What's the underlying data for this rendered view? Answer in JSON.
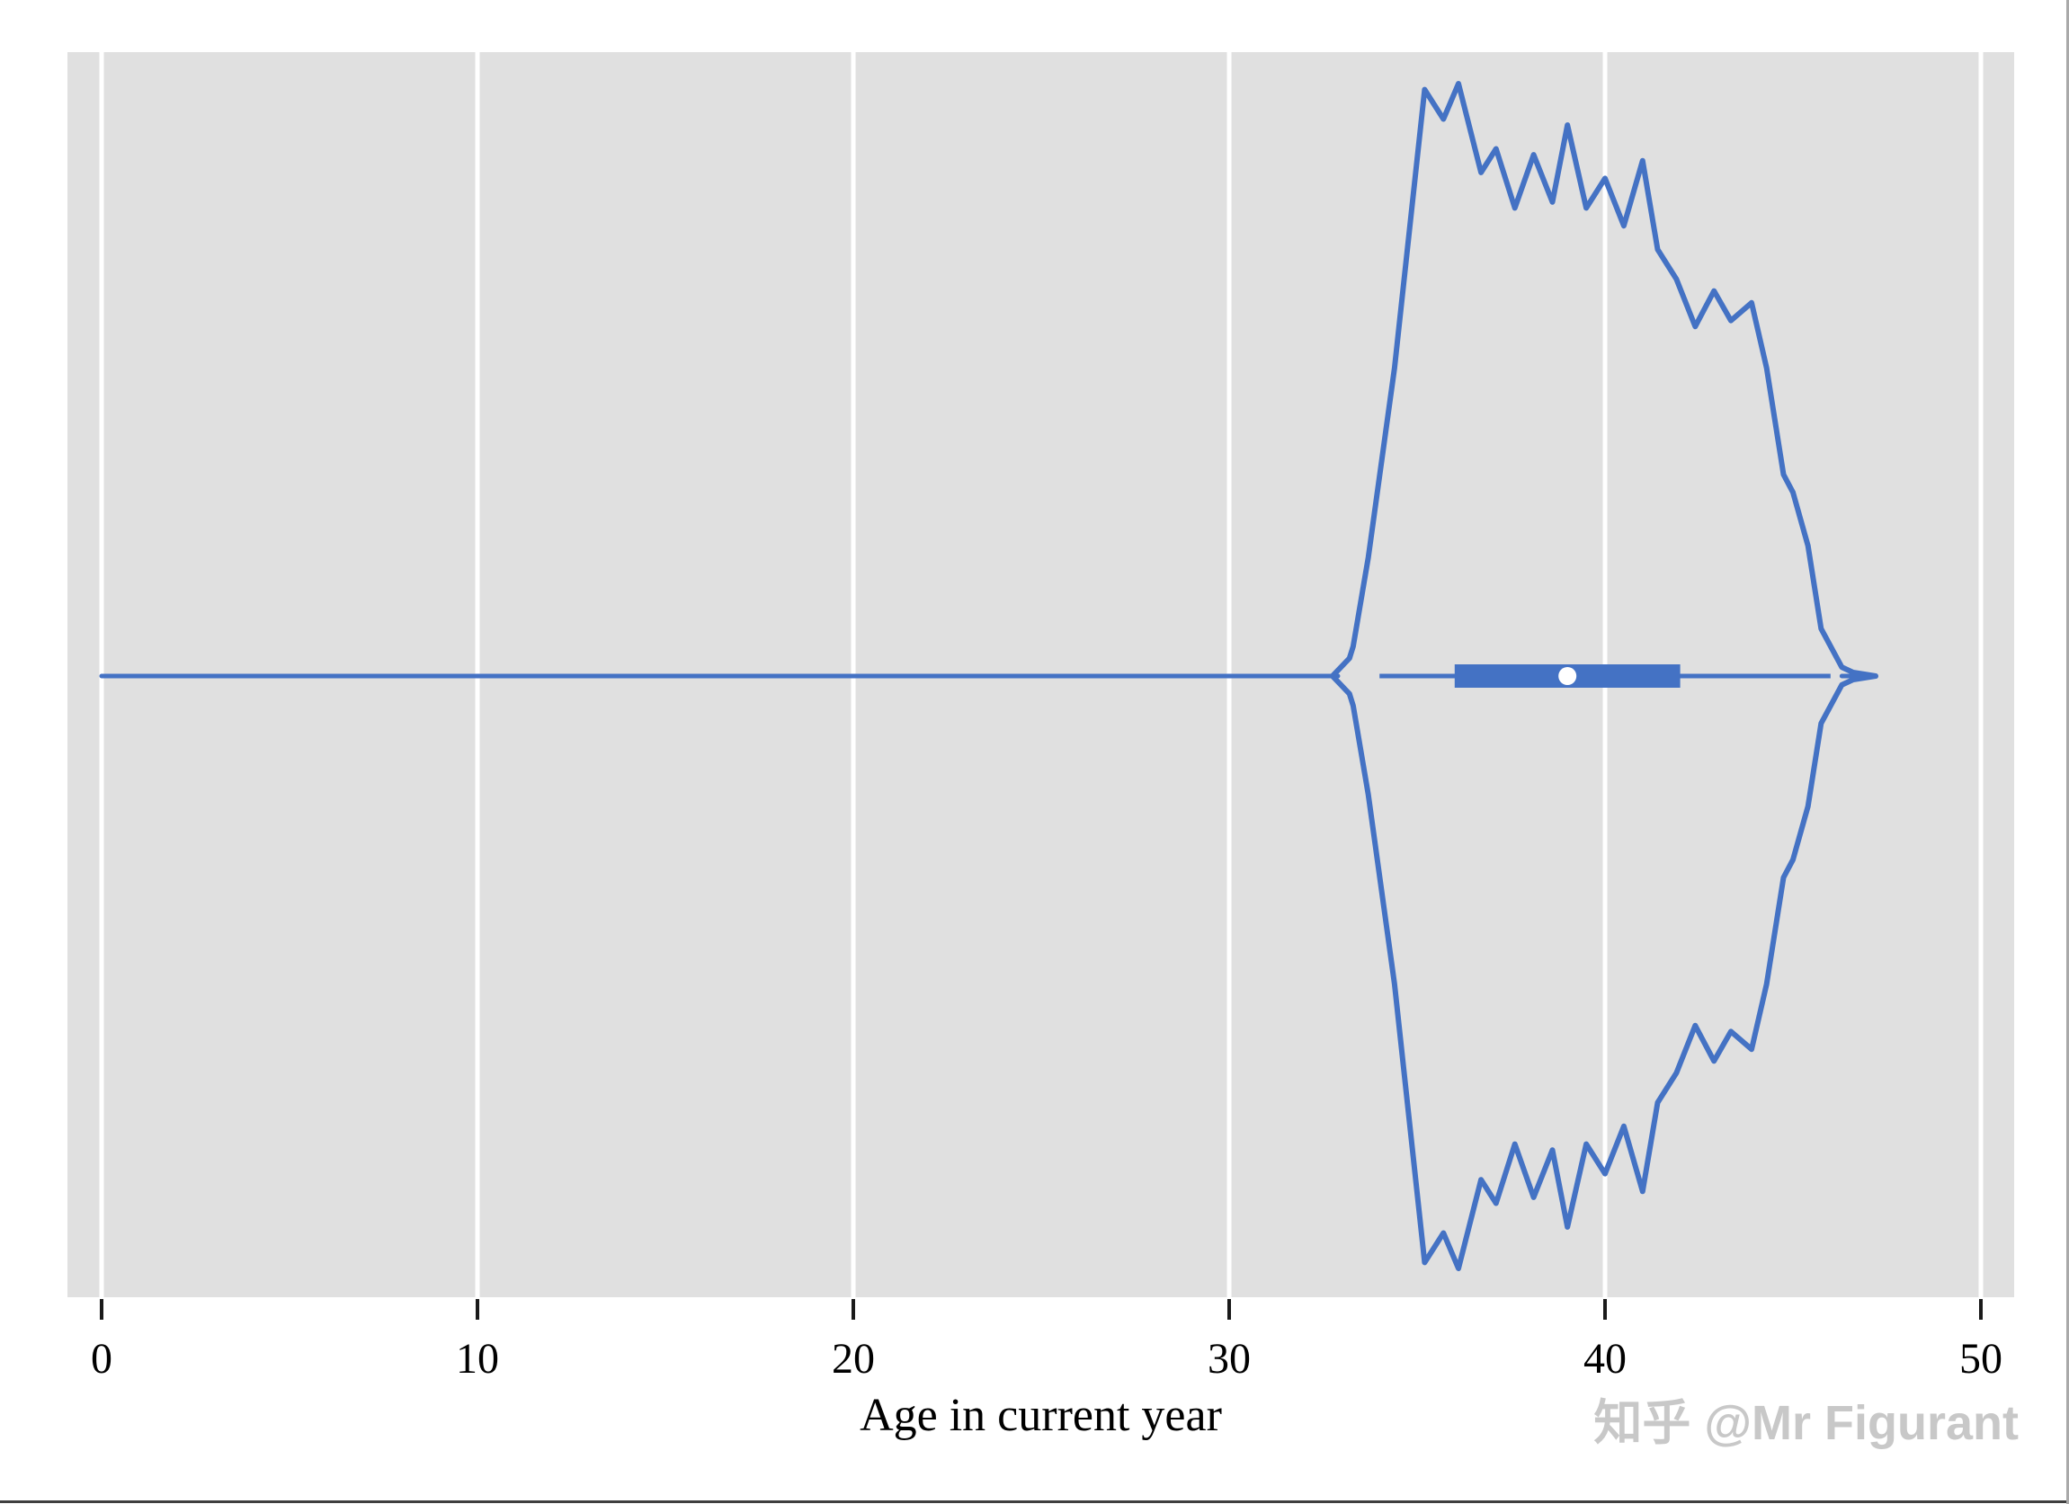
{
  "chart_data": {
    "type": "violin",
    "orientation": "horizontal",
    "title": "",
    "xlabel": "Age in current year",
    "ylabel": "",
    "x_ticks": [
      0,
      10,
      20,
      30,
      40,
      50
    ],
    "x_tick_labels": [
      "0",
      "10",
      "20",
      "30",
      "40",
      "50"
    ],
    "x_range": [
      -0.9,
      50.9
    ],
    "grid": "vertical-white-gridlines-on",
    "legend": "none",
    "panel_bg_color": "#e0e0e0",
    "gridline_color": "#ffffff",
    "series_color": "#4472c4",
    "tick_color": "#1a1a1a",
    "violin": {
      "tail_start_age": 0,
      "split_age": 32.75,
      "tip_age": 47.2,
      "max_halfwidth_panel_frac": 0.476,
      "profile": [
        [
          32.75,
          0.0
        ],
        [
          33.2,
          0.03
        ],
        [
          33.3,
          0.05
        ],
        [
          33.7,
          0.2
        ],
        [
          34.4,
          0.52
        ],
        [
          35.2,
          0.99
        ],
        [
          35.7,
          0.94
        ],
        [
          36.1,
          1.0
        ],
        [
          36.7,
          0.85
        ],
        [
          37.1,
          0.89
        ],
        [
          37.6,
          0.79
        ],
        [
          38.1,
          0.88
        ],
        [
          38.6,
          0.8
        ],
        [
          39.0,
          0.93
        ],
        [
          39.5,
          0.79
        ],
        [
          40.0,
          0.84
        ],
        [
          40.5,
          0.76
        ],
        [
          41.0,
          0.87
        ],
        [
          41.4,
          0.72
        ],
        [
          41.9,
          0.67
        ],
        [
          42.4,
          0.59
        ],
        [
          42.9,
          0.65
        ],
        [
          43.35,
          0.6
        ],
        [
          43.9,
          0.63
        ],
        [
          44.3,
          0.52
        ],
        [
          44.75,
          0.34
        ],
        [
          45.0,
          0.31
        ],
        [
          45.4,
          0.22
        ],
        [
          45.75,
          0.08
        ],
        [
          46.3,
          0.015
        ],
        [
          46.6,
          0.006
        ],
        [
          47.2,
          0.0
        ]
      ]
    },
    "box": {
      "whisker_low": 34.0,
      "q1": 36.0,
      "center_dot": 39.0,
      "q3": 42.0,
      "whisker_high": 46.0,
      "box_fill": "#4472c4",
      "center_dot_color": "#ffffff"
    }
  },
  "axis": {
    "title": "Age in current year",
    "tick_labels": [
      "0",
      "10",
      "20",
      "30",
      "40",
      "50"
    ]
  },
  "watermark": {
    "text": "知乎 @Mr Figurant",
    "color": "#c8c8c8"
  },
  "frame": {
    "bottom_border_color": "#3f3f3f",
    "right_border_color": "#a9a9a9"
  }
}
